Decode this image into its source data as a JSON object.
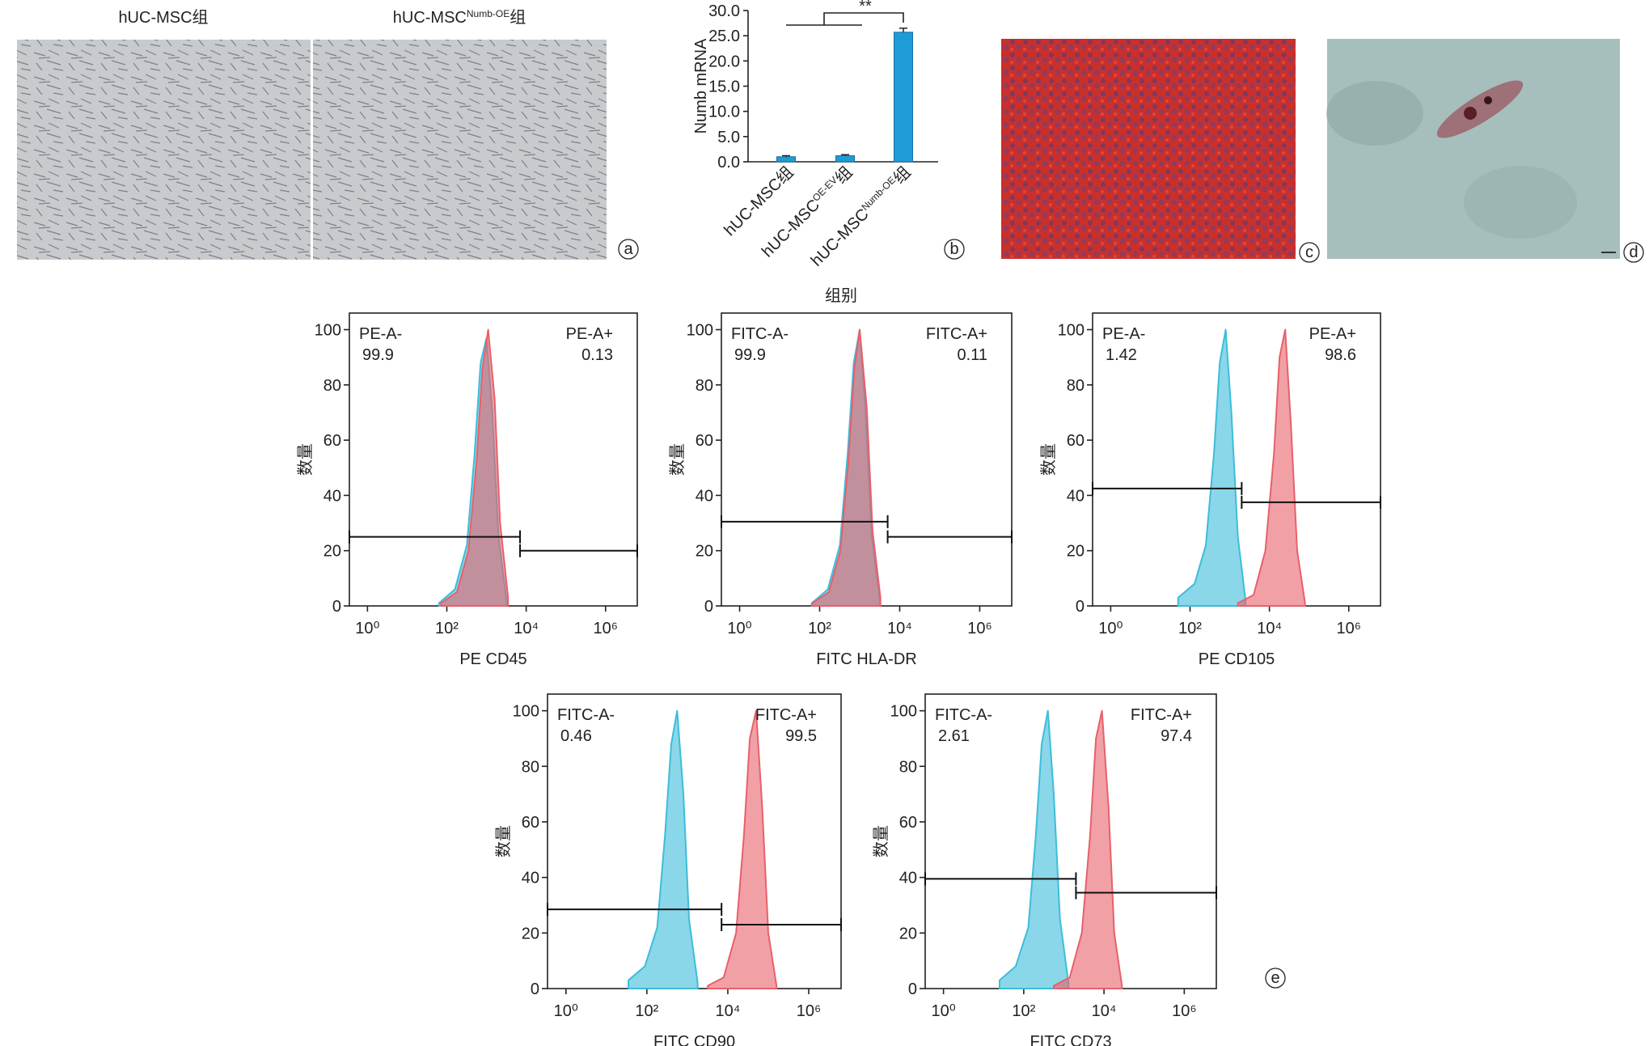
{
  "photo_captions": [
    [
      "hUC-MSC组"
    ],
    [
      "hUC-MSC",
      "Numb-OE",
      "组"
    ]
  ],
  "panel_labels": [
    "a",
    "b",
    "c",
    "d",
    "e"
  ],
  "chart_data": [
    {
      "type": "bar",
      "ylabel": "Numb mRNA",
      "xlabel": "组别",
      "categories": [
        [
          "hUC-MSC组"
        ],
        [
          "hUC-MSC",
          "OE-EV",
          "组"
        ],
        [
          "hUC-MSC",
          "Numb-OE",
          "组"
        ]
      ],
      "values": [
        1.0,
        1.2,
        25.7
      ],
      "errors": [
        0.2,
        0.2,
        0.8
      ],
      "color": "#1e9cd7",
      "ylim": [
        0,
        30
      ],
      "yticks": [
        {
          "value": 0,
          "label": "0.0"
        },
        {
          "value": 5,
          "label": "5.0"
        },
        {
          "value": 10,
          "label": "10.0"
        },
        {
          "value": 15,
          "label": "15.0"
        },
        {
          "value": 20,
          "label": "20.0"
        },
        {
          "value": 25,
          "label": "25.0"
        },
        {
          "value": 30,
          "label": "30.0"
        }
      ],
      "significance": "**"
    },
    {
      "type": "area",
      "xlabel": "PE CD45",
      "ylabel": "数量",
      "xscale": "log",
      "xlim": [
        0.35,
        6300000
      ],
      "ylim": [
        0,
        106
      ],
      "xticks": [
        {
          "value": 1,
          "label": "10⁰"
        },
        {
          "value": 100,
          "label": "10²"
        },
        {
          "value": 10000,
          "label": "10⁴"
        },
        {
          "value": 1000000,
          "label": "10⁶"
        }
      ],
      "yticks": [
        0,
        20,
        40,
        60,
        80,
        100
      ],
      "series": [
        {
          "color": "#3cbdda",
          "x": [
            63,
            160,
            320,
            500,
            710,
            1000,
            1400,
            2000,
            3200
          ],
          "values": [
            1,
            6,
            22,
            55,
            88,
            97,
            70,
            25,
            2
          ]
        },
        {
          "color": "#e8606a",
          "x": [
            71,
            180,
            350,
            560,
            790,
            1100,
            1600,
            2200,
            3500
          ],
          "values": [
            1,
            5,
            20,
            52,
            86,
            100,
            75,
            30,
            3
          ]
        }
      ],
      "gates": [
        {
          "name": "PE-A-",
          "value": 99.9,
          "range": [
            0.35,
            7000
          ],
          "y": 25
        },
        {
          "name": "PE-A+",
          "value": 0.13,
          "range": [
            7000,
            6300000
          ],
          "y": 20
        }
      ]
    },
    {
      "type": "area",
      "xlabel": "FITC HLA-DR",
      "ylabel": "数量",
      "xscale": "log",
      "xlim": [
        0.35,
        6300000
      ],
      "ylim": [
        0,
        106
      ],
      "xticks": [
        {
          "value": 1,
          "label": "10⁰"
        },
        {
          "value": 100,
          "label": "10²"
        },
        {
          "value": 10000,
          "label": "10⁴"
        },
        {
          "value": 1000000,
          "label": "10⁶"
        }
      ],
      "yticks": [
        0,
        20,
        40,
        60,
        80,
        100
      ],
      "series": [
        {
          "color": "#3cbdda",
          "x": [
            63,
            160,
            320,
            500,
            710,
            1000,
            1400,
            2000,
            3200
          ],
          "values": [
            1,
            6,
            22,
            55,
            88,
            100,
            70,
            25,
            2
          ]
        },
        {
          "color": "#e8606a",
          "x": [
            66,
            170,
            330,
            520,
            740,
            1000,
            1500,
            2100,
            3300
          ],
          "values": [
            1,
            5,
            20,
            52,
            86,
            100,
            72,
            27,
            3
          ]
        }
      ],
      "gates": [
        {
          "name": "FITC-A-",
          "value": 99.9,
          "range": [
            0.35,
            5000
          ],
          "y": 30.5
        },
        {
          "name": "FITC-A+",
          "value": 0.11,
          "range": [
            5000,
            6300000
          ],
          "y": 25
        }
      ]
    },
    {
      "type": "area",
      "xlabel": "PE CD105",
      "ylabel": "数量",
      "xscale": "log",
      "xlim": [
        0.35,
        6300000
      ],
      "ylim": [
        0,
        106
      ],
      "xticks": [
        {
          "value": 1,
          "label": "10⁰"
        },
        {
          "value": 100,
          "label": "10²"
        },
        {
          "value": 10000,
          "label": "10⁴"
        },
        {
          "value": 1000000,
          "label": "10⁶"
        }
      ],
      "yticks": [
        0,
        20,
        40,
        60,
        80,
        100
      ],
      "series": [
        {
          "color": "#3cbdda",
          "x": [
            50,
            130,
            250,
            400,
            560,
            790,
            1100,
            1600,
            2500
          ],
          "values": [
            3,
            8,
            22,
            55,
            88,
            100,
            70,
            25,
            2
          ]
        },
        {
          "color": "#e8606a",
          "x": [
            1600,
            4000,
            7900,
            13000,
            18000,
            25000,
            35000,
            50000,
            79000
          ],
          "values": [
            1,
            4,
            20,
            55,
            90,
            100,
            65,
            20,
            1
          ]
        }
      ],
      "gates": [
        {
          "name": "PE-A-",
          "value": 1.42,
          "range": [
            0.35,
            2000
          ],
          "y": 42.5
        },
        {
          "name": "PE-A+",
          "value": 98.6,
          "range": [
            2000,
            6300000
          ],
          "y": 37.5
        }
      ]
    },
    {
      "type": "area",
      "xlabel": "FITC CD90",
      "ylabel": "数量",
      "xscale": "log",
      "xlim": [
        0.35,
        6300000
      ],
      "ylim": [
        0,
        106
      ],
      "xticks": [
        {
          "value": 1,
          "label": "10⁰"
        },
        {
          "value": 100,
          "label": "10²"
        },
        {
          "value": 10000,
          "label": "10⁴"
        },
        {
          "value": 1000000,
          "label": "10⁶"
        }
      ],
      "yticks": [
        0,
        20,
        40,
        60,
        80,
        100
      ],
      "series": [
        {
          "color": "#3cbdda",
          "x": [
            35,
            89,
            180,
            280,
            400,
            560,
            800,
            1100,
            1800
          ],
          "values": [
            3,
            8,
            22,
            55,
            88,
            100,
            70,
            25,
            2
          ]
        },
        {
          "color": "#e8606a",
          "x": [
            3200,
            7900,
            16000,
            25000,
            35000,
            50000,
            71000,
            100000,
            160000
          ],
          "values": [
            1,
            4,
            20,
            55,
            90,
            100,
            65,
            20,
            1
          ]
        }
      ],
      "gates": [
        {
          "name": "FITC-A-",
          "value": 0.46,
          "range": [
            0.35,
            7000
          ],
          "y": 28.5
        },
        {
          "name": "FITC-A+",
          "value": 99.5,
          "range": [
            7000,
            6300000
          ],
          "y": 23
        }
      ]
    },
    {
      "type": "area",
      "xlabel": "FITC CD73",
      "ylabel": "数量",
      "xscale": "log",
      "xlim": [
        0.35,
        6300000
      ],
      "ylim": [
        0,
        106
      ],
      "xticks": [
        {
          "value": 1,
          "label": "10⁰"
        },
        {
          "value": 100,
          "label": "10²"
        },
        {
          "value": 10000,
          "label": "10⁴"
        },
        {
          "value": 1000000,
          "label": "10⁶"
        }
      ],
      "yticks": [
        0,
        20,
        40,
        60,
        80,
        100
      ],
      "series": [
        {
          "color": "#3cbdda",
          "x": [
            25,
            63,
            130,
            200,
            280,
            400,
            560,
            800,
            1300
          ],
          "values": [
            3,
            8,
            22,
            55,
            88,
            100,
            70,
            25,
            2
          ]
        },
        {
          "color": "#e8606a",
          "x": [
            560,
            1400,
            2800,
            4500,
            6300,
            8900,
            13000,
            18000,
            28000
          ],
          "values": [
            1,
            4,
            20,
            55,
            90,
            100,
            65,
            20,
            1
          ]
        }
      ],
      "gates": [
        {
          "name": "FITC-A-",
          "value": 2.61,
          "range": [
            0.35,
            2000
          ],
          "y": 39.5
        },
        {
          "name": "FITC-A+",
          "value": 97.4,
          "range": [
            2000,
            6300000
          ],
          "y": 34.5
        }
      ]
    }
  ]
}
